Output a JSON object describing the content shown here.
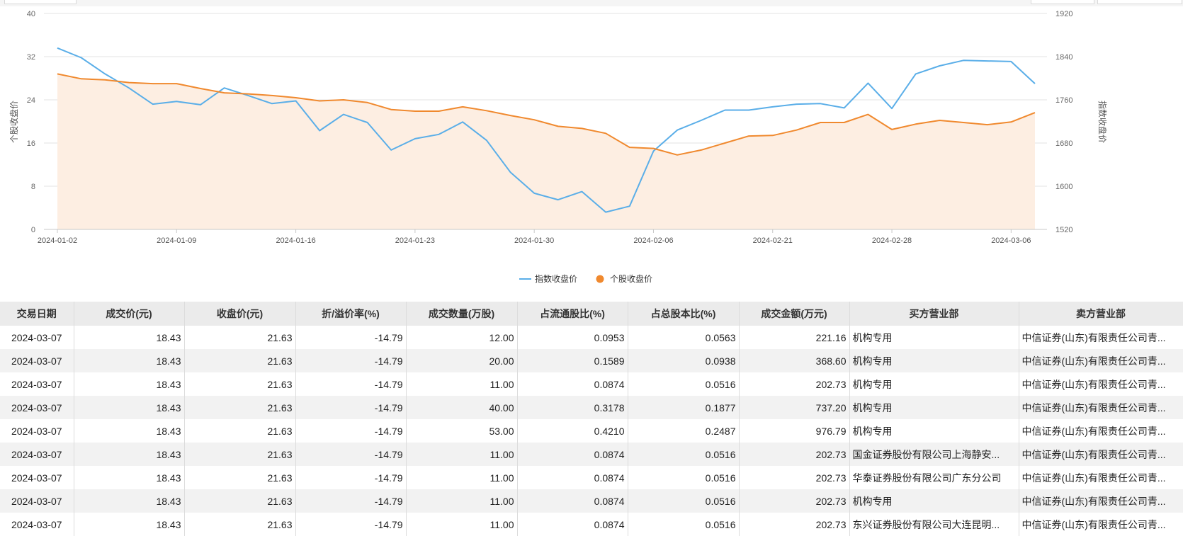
{
  "chart_data": {
    "type": "line",
    "x_tick_labels": [
      "2024-01-02",
      "2024-01-09",
      "2024-01-16",
      "2024-01-23",
      "2024-01-30",
      "2024-02-06",
      "2024-02-21",
      "2024-02-28",
      "2024-03-06"
    ],
    "y_left_label": "个股收盘价",
    "y_right_label": "指数收盘价",
    "y_left_ticks": [
      "0",
      "8",
      "16",
      "24",
      "32",
      "40"
    ],
    "y_right_ticks": [
      "1520",
      "1600",
      "1680",
      "1760",
      "1840",
      "1920"
    ],
    "y_left_range": [
      0,
      40
    ],
    "y_right_range": [
      1520,
      1920
    ],
    "legend_position": "bottom-center",
    "x": [
      "2024-01-02",
      "2024-01-03",
      "2024-01-04",
      "2024-01-05",
      "2024-01-08",
      "2024-01-09",
      "2024-01-10",
      "2024-01-11",
      "2024-01-12",
      "2024-01-15",
      "2024-01-16",
      "2024-01-17",
      "2024-01-18",
      "2024-01-19",
      "2024-01-22",
      "2024-01-23",
      "2024-01-24",
      "2024-01-25",
      "2024-01-26",
      "2024-01-29",
      "2024-01-30",
      "2024-01-31",
      "2024-02-01",
      "2024-02-02",
      "2024-02-05",
      "2024-02-06",
      "2024-02-07",
      "2024-02-08",
      "2024-02-19",
      "2024-02-20",
      "2024-02-21",
      "2024-02-22",
      "2024-02-23",
      "2024-02-26",
      "2024-02-27",
      "2024-02-28",
      "2024-02-29",
      "2024-03-01",
      "2024-03-04",
      "2024-03-05",
      "2024-03-06",
      "2024-03-07"
    ],
    "series": [
      {
        "name": "指数收盘价",
        "axis": "right",
        "color": "#5aaee8",
        "style": "line",
        "values": [
          1856,
          1838,
          1808,
          1782,
          1752,
          1757,
          1751,
          1782,
          1768,
          1753,
          1758,
          1703,
          1733,
          1718,
          1667,
          1688,
          1696,
          1719,
          1685,
          1626,
          1587,
          1575,
          1590,
          1552,
          1563,
          1665,
          1704,
          1722,
          1741,
          1741,
          1747,
          1752,
          1753,
          1745,
          1791,
          1744,
          1808,
          1823,
          1833,
          1832,
          1831,
          1790
        ]
      },
      {
        "name": "个股收盘价",
        "axis": "left",
        "color": "#f0892e",
        "fill": "#fdeee2",
        "style": "area",
        "values": [
          28.8,
          27.9,
          27.7,
          27.2,
          27.0,
          27.0,
          26.1,
          25.3,
          25.1,
          24.8,
          24.4,
          23.8,
          24.0,
          23.5,
          22.2,
          21.9,
          21.9,
          22.7,
          22.0,
          21.1,
          20.3,
          19.1,
          18.7,
          17.8,
          15.2,
          15.0,
          13.8,
          14.7,
          16.0,
          17.3,
          17.4,
          18.4,
          19.8,
          19.8,
          21.3,
          18.5,
          19.5,
          20.2,
          19.8,
          19.4,
          19.9,
          21.63
        ]
      }
    ]
  },
  "table": {
    "columns": [
      "交易日期",
      "成交价(元)",
      "收盘价(元)",
      "折/溢价率(%)",
      "成交数量(万股)",
      "占流通股比(%)",
      "占总股本比(%)",
      "成交金额(万元)",
      "买方营业部",
      "卖方营业部"
    ],
    "rows": [
      [
        "2024-03-07",
        "18.43",
        "21.63",
        "-14.79",
        "12.00",
        "0.0953",
        "0.0563",
        "221.16",
        "机构专用",
        "中信证券(山东)有限责任公司青..."
      ],
      [
        "2024-03-07",
        "18.43",
        "21.63",
        "-14.79",
        "20.00",
        "0.1589",
        "0.0938",
        "368.60",
        "机构专用",
        "中信证券(山东)有限责任公司青..."
      ],
      [
        "2024-03-07",
        "18.43",
        "21.63",
        "-14.79",
        "11.00",
        "0.0874",
        "0.0516",
        "202.73",
        "机构专用",
        "中信证券(山东)有限责任公司青..."
      ],
      [
        "2024-03-07",
        "18.43",
        "21.63",
        "-14.79",
        "40.00",
        "0.3178",
        "0.1877",
        "737.20",
        "机构专用",
        "中信证券(山东)有限责任公司青..."
      ],
      [
        "2024-03-07",
        "18.43",
        "21.63",
        "-14.79",
        "53.00",
        "0.4210",
        "0.2487",
        "976.79",
        "机构专用",
        "中信证券(山东)有限责任公司青..."
      ],
      [
        "2024-03-07",
        "18.43",
        "21.63",
        "-14.79",
        "11.00",
        "0.0874",
        "0.0516",
        "202.73",
        "国金证券股份有限公司上海静安...",
        "中信证券(山东)有限责任公司青..."
      ],
      [
        "2024-03-07",
        "18.43",
        "21.63",
        "-14.79",
        "11.00",
        "0.0874",
        "0.0516",
        "202.73",
        "华泰证券股份有限公司广东分公司",
        "中信证券(山东)有限责任公司青..."
      ],
      [
        "2024-03-07",
        "18.43",
        "21.63",
        "-14.79",
        "11.00",
        "0.0874",
        "0.0516",
        "202.73",
        "机构专用",
        "中信证券(山东)有限责任公司青..."
      ],
      [
        "2024-03-07",
        "18.43",
        "21.63",
        "-14.79",
        "11.00",
        "0.0874",
        "0.0516",
        "202.73",
        "东兴证券股份有限公司大连昆明...",
        "中信证券(山东)有限责任公司青..."
      ]
    ]
  }
}
